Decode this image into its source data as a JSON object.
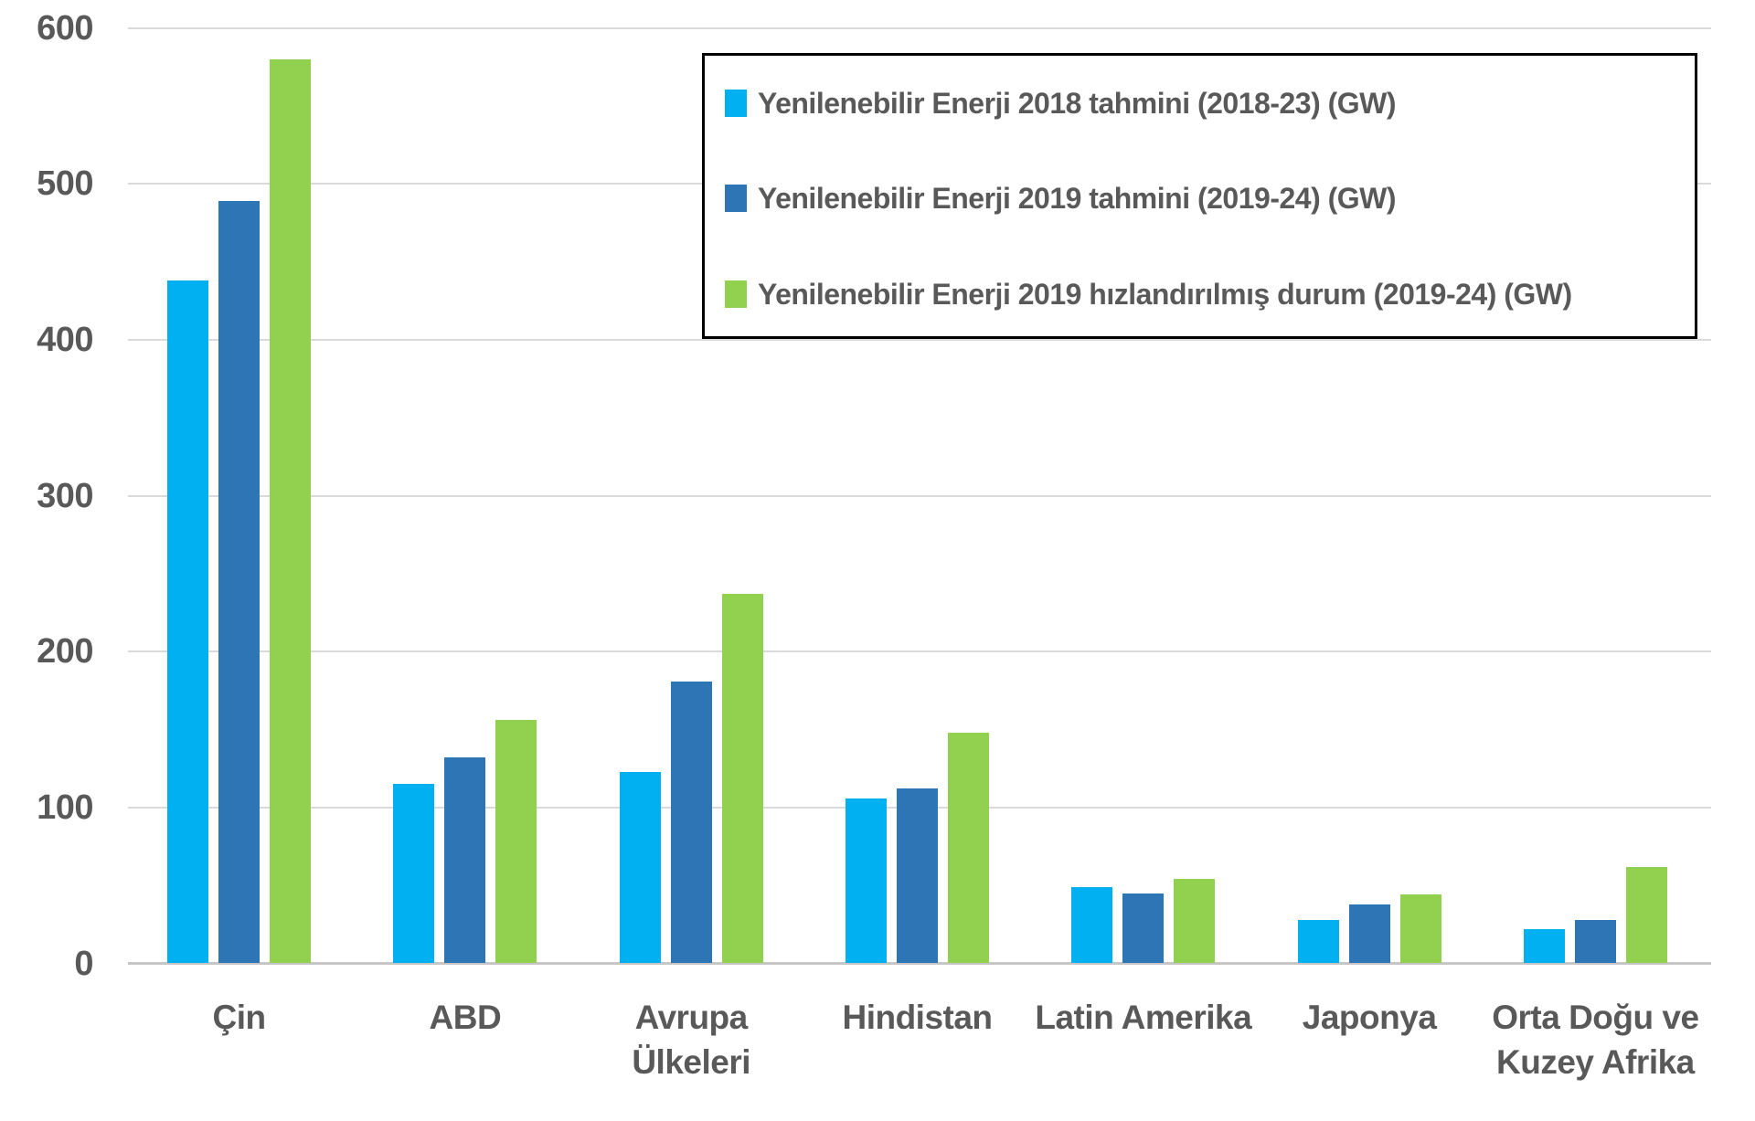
{
  "chart_data": {
    "type": "bar",
    "title": "",
    "categories": [
      "Çin",
      "ABD",
      "Avrupa Ülkeleri",
      "Hindistan",
      "Latin Amerika",
      "Japonya",
      "Orta Doğu ve Kuzey Afrika"
    ],
    "category_label_lines": [
      [
        "Çin"
      ],
      [
        "ABD"
      ],
      [
        "Avrupa",
        "Ülkeleri"
      ],
      [
        "Hindistan"
      ],
      [
        "Latin Amerika"
      ],
      [
        "Japonya"
      ],
      [
        "Orta Doğu ve",
        "Kuzey Afrika"
      ]
    ],
    "series": [
      {
        "name": "Yenilenebilir Enerji 2018 tahmini (2018-23) (GW)",
        "color": "#00B0F0",
        "values": [
          438,
          115,
          123,
          106,
          49,
          28,
          22
        ]
      },
      {
        "name": "Yenilenebilir Enerji 2019 tahmini (2019-24) (GW)",
        "color": "#2E75B6",
        "values": [
          489,
          132,
          181,
          112,
          45,
          38,
          28
        ]
      },
      {
        "name": "Yenilenebilir Enerji 2019 hızlandırılmış durum (2019-24) (GW)",
        "color": "#92D050",
        "values": [
          580,
          156,
          237,
          148,
          54,
          44,
          62
        ]
      }
    ],
    "xlabel": "",
    "ylabel": "",
    "ylim": [
      0,
      600
    ],
    "y_ticks": [
      0,
      100,
      200,
      300,
      400,
      500,
      600
    ],
    "grid": "horizontal",
    "legend_position": "top-right",
    "colors": {
      "axis_text": "#595959",
      "gridline": "#dadada",
      "zero_line": "#c6c6c6",
      "legend_border": "#000000",
      "background": "#ffffff"
    }
  }
}
